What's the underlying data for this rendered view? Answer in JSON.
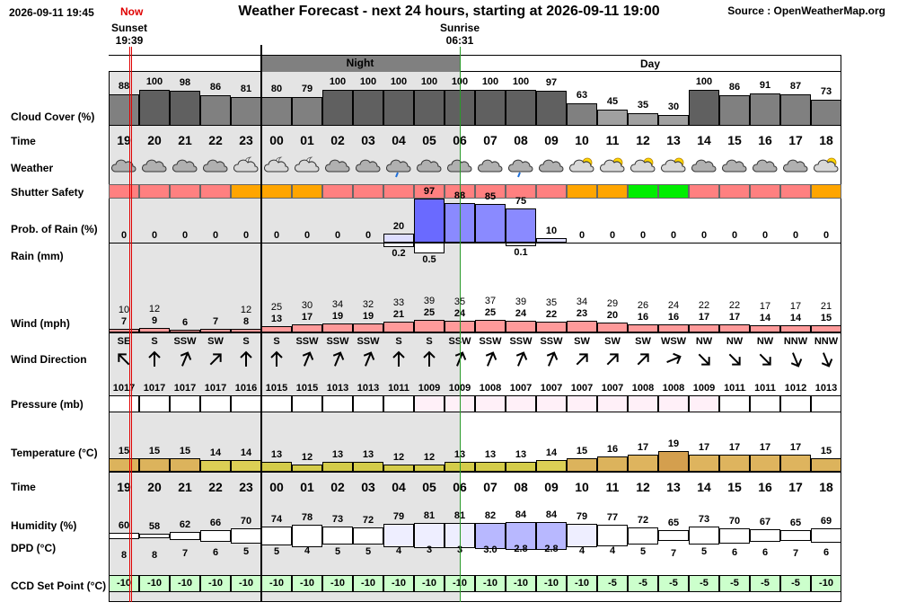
{
  "header": {
    "datetime": "2026-09-11 19:45",
    "title": "Weather Forecast - next 24 hours, starting at 2026-09-11 19:00",
    "source": "Source : OpenWeatherMap.org",
    "now_label": "Now",
    "sunset_label": "Sunset",
    "sunset_time": "19:39",
    "sunrise_label": "Sunrise",
    "sunrise_time": "06:31"
  },
  "period": {
    "night": "Night",
    "day": "Day"
  },
  "labels": {
    "cloud": "Cloud Cover (%)",
    "time": "Time",
    "weather": "Weather",
    "shutter": "Shutter Safety",
    "prob_rain": "Prob. of Rain (%)",
    "rain": "Rain (mm)",
    "wind": "Wind (mph)",
    "wind_dir": "Wind Direction",
    "pressure": "Pressure (mb)",
    "temperature": "Temperature (°C)",
    "time2": "Time",
    "humidity": "Humidity (%)",
    "dpd": "DPD (°C)",
    "ccd": "CCD Set Point (°C)"
  },
  "hours": [
    "19",
    "20",
    "21",
    "22",
    "23",
    "00",
    "01",
    "02",
    "03",
    "04",
    "05",
    "06",
    "07",
    "08",
    "09",
    "10",
    "11",
    "12",
    "13",
    "14",
    "15",
    "16",
    "17",
    "18"
  ],
  "cloud_cover": [
    88,
    100,
    98,
    86,
    81,
    80,
    79,
    100,
    100,
    100,
    100,
    100,
    100,
    100,
    97,
    63,
    45,
    35,
    30,
    100,
    86,
    91,
    87,
    73
  ],
  "weather_icons": [
    "cloudy",
    "cloudy",
    "cloudy",
    "cloudy",
    "cloud-moon",
    "cloud-moon",
    "cloud-moon",
    "cloudy",
    "cloudy",
    "light-rain",
    "cloudy",
    "cloudy",
    "cloudy",
    "light-rain",
    "cloudy",
    "cloud-sun",
    "cloud-sun",
    "cloud-sun",
    "cloud-sun",
    "cloudy",
    "cloudy",
    "cloudy",
    "cloudy",
    "cloud-sun"
  ],
  "shutter_safety": [
    "unsafe",
    "unsafe",
    "unsafe",
    "unsafe",
    "caution",
    "caution",
    "caution",
    "unsafe",
    "unsafe",
    "unsafe",
    "unsafe",
    "unsafe",
    "unsafe",
    "unsafe",
    "unsafe",
    "caution",
    "caution",
    "safe",
    "safe",
    "unsafe",
    "unsafe",
    "unsafe",
    "unsafe",
    "caution"
  ],
  "prob_rain": [
    0,
    0,
    0,
    0,
    0,
    0,
    0,
    0,
    0,
    20,
    97,
    88,
    85,
    75,
    10,
    0,
    0,
    0,
    0,
    0,
    0,
    0,
    0,
    0
  ],
  "rain": {
    "9": "0.2",
    "10": "0.5",
    "13": "0.1"
  },
  "wind_gust": [
    10,
    12,
    null,
    null,
    12,
    25,
    30,
    34,
    32,
    33,
    39,
    35,
    37,
    39,
    35,
    34,
    29,
    26,
    24,
    22,
    22,
    17,
    17,
    21
  ],
  "wind_speed": [
    7,
    9,
    6,
    7,
    8,
    13,
    17,
    19,
    19,
    21,
    25,
    24,
    25,
    24,
    22,
    23,
    20,
    16,
    16,
    17,
    17,
    14,
    14,
    15
  ],
  "wind_dir": [
    "SE",
    "S",
    "SSW",
    "SW",
    "S",
    "S",
    "SSW",
    "SSW",
    "SSW",
    "S",
    "S",
    "SSW",
    "SSW",
    "SSW",
    "SSW",
    "SW",
    "SW",
    "SW",
    "WSW",
    "NW",
    "NW",
    "NW",
    "NNW",
    "NNW"
  ],
  "pressure": [
    1017,
    1017,
    1017,
    1017,
    1016,
    1015,
    1015,
    1013,
    1013,
    1011,
    1009,
    1009,
    1008,
    1007,
    1007,
    1007,
    1007,
    1008,
    1008,
    1009,
    1011,
    1011,
    1012,
    1013
  ],
  "temperature": [
    15,
    15,
    15,
    14,
    14,
    13,
    12,
    13,
    13,
    12,
    12,
    13,
    13,
    13,
    14,
    15,
    16,
    17,
    19,
    17,
    17,
    17,
    17,
    15
  ],
  "humidity": [
    60,
    58,
    62,
    66,
    70,
    74,
    78,
    73,
    72,
    79,
    81,
    81,
    82,
    84,
    84,
    79,
    77,
    72,
    65,
    73,
    70,
    67,
    65,
    69
  ],
  "dpd": [
    "8",
    "8",
    "7",
    "6",
    "5",
    "5",
    "4",
    "5",
    "5",
    "4",
    "3",
    "3",
    "3.0",
    "2.8",
    "2.8",
    "4",
    "4",
    "5",
    "7",
    "5",
    "6",
    "6",
    "7",
    "6"
  ],
  "ccd": [
    -10,
    -10,
    -10,
    -10,
    -10,
    -10,
    -10,
    -10,
    -10,
    -10,
    -10,
    -10,
    -10,
    -10,
    -10,
    -10,
    -5,
    -5,
    -5,
    -5,
    -5,
    -5,
    -5,
    -10
  ],
  "colors": {
    "unsafe": "#ff8080",
    "caution": "#ffa500",
    "safe": "#00ee00",
    "cloud_dark": "#606060",
    "cloud_mid": "#808080",
    "cloud_light": "#a0a0a0",
    "night_band": "#808080",
    "night_bg": "#e4e4e4",
    "now_line": "#e00000",
    "rain_bar": "#7a7aff",
    "wind_bar": "#ff9a9a",
    "temp_bar": "#d8b860",
    "humidity_bar": "#b8b8ff",
    "ccd_bg": "#ccffcc"
  }
}
